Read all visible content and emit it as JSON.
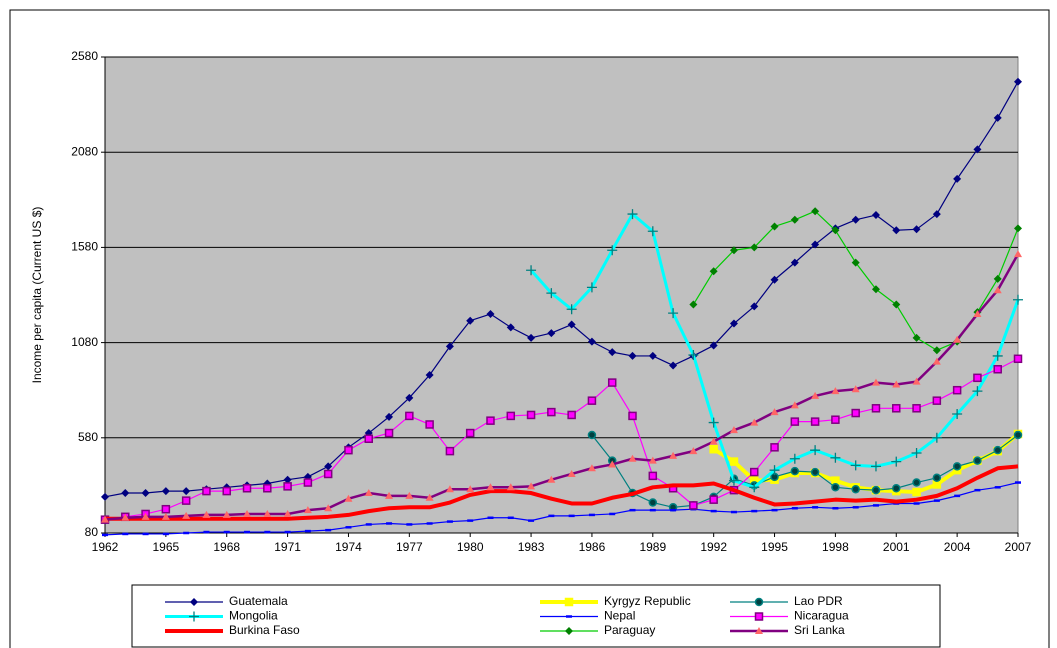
{
  "chart_data": {
    "type": "line",
    "y_label": "Income per capita (Current US $)",
    "x": [
      1962,
      1963,
      1964,
      1965,
      1966,
      1967,
      1968,
      1969,
      1970,
      1971,
      1972,
      1973,
      1974,
      1975,
      1976,
      1977,
      1978,
      1979,
      1980,
      1981,
      1982,
      1983,
      1984,
      1985,
      1986,
      1987,
      1988,
      1989,
      1990,
      1991,
      1992,
      1993,
      1994,
      1995,
      1996,
      1997,
      1998,
      1999,
      2000,
      2001,
      2002,
      2003,
      2004,
      2005,
      2006,
      2007
    ],
    "xlim": [
      1962,
      2007
    ],
    "xticks": [
      1962,
      1965,
      1968,
      1971,
      1974,
      1977,
      1980,
      1983,
      1986,
      1989,
      1992,
      1995,
      1998,
      2001,
      2004,
      2007
    ],
    "ylim": [
      80,
      2580
    ],
    "yticks": [
      80,
      580,
      1080,
      1580,
      2080,
      2580
    ],
    "grid": true,
    "background": "#c0c0c0",
    "legend": "bottom",
    "series": [
      {
        "name": "Guatemala",
        "color": "#000080",
        "marker": "diamond",
        "line_width": 1.2,
        "values": [
          270,
          290,
          290,
          300,
          300,
          310,
          320,
          330,
          340,
          360,
          375,
          430,
          530,
          605,
          690,
          790,
          910,
          1060,
          1195,
          1230,
          1160,
          1105,
          1130,
          1175,
          1085,
          1030,
          1010,
          1010,
          960,
          1010,
          1065,
          1180,
          1270,
          1410,
          1500,
          1595,
          1680,
          1725,
          1750,
          1670,
          1675,
          1755,
          1940,
          2095,
          2260,
          2450
        ]
      },
      {
        "name": "Kyrgyz Republic",
        "color": "#ffff00",
        "marker": "square",
        "line_width": 4,
        "values": [
          null,
          null,
          null,
          null,
          null,
          null,
          null,
          null,
          null,
          null,
          null,
          null,
          null,
          null,
          null,
          null,
          null,
          null,
          null,
          null,
          null,
          null,
          null,
          null,
          null,
          null,
          null,
          null,
          null,
          null,
          520,
          455,
          355,
          360,
          395,
          395,
          355,
          320,
          305,
          300,
          295,
          335,
          410,
          460,
          510,
          600
        ]
      },
      {
        "name": "Lao PDR",
        "color": "#008080",
        "marker": "circle",
        "marker_color": "#004040",
        "line_width": 1.2,
        "values": [
          null,
          null,
          null,
          null,
          null,
          null,
          null,
          null,
          null,
          null,
          null,
          null,
          null,
          null,
          null,
          null,
          null,
          null,
          null,
          null,
          null,
          null,
          null,
          null,
          595,
          460,
          290,
          240,
          215,
          225,
          270,
          365,
          330,
          375,
          405,
          400,
          320,
          310,
          305,
          315,
          345,
          370,
          430,
          460,
          515,
          595
        ]
      },
      {
        "name": "Mongolia",
        "color": "#00ffff",
        "marker": "plus",
        "marker_color": "#008080",
        "line_width": 3,
        "values": [
          null,
          null,
          null,
          null,
          null,
          null,
          null,
          null,
          null,
          null,
          null,
          null,
          null,
          null,
          null,
          null,
          null,
          null,
          null,
          null,
          null,
          1460,
          1340,
          1255,
          1370,
          1565,
          1755,
          1665,
          1235,
          1015,
          660,
          355,
          320,
          410,
          470,
          515,
          475,
          435,
          430,
          455,
          500,
          580,
          705,
          825,
          1010,
          1305
        ]
      },
      {
        "name": "Nepal",
        "color": "#0000ff",
        "marker": "dash",
        "line_width": 1.2,
        "values": [
          70,
          75,
          75,
          75,
          80,
          85,
          85,
          85,
          85,
          85,
          90,
          95,
          110,
          125,
          130,
          125,
          130,
          140,
          145,
          160,
          160,
          145,
          170,
          170,
          175,
          180,
          200,
          200,
          200,
          205,
          195,
          190,
          195,
          200,
          210,
          215,
          210,
          215,
          225,
          235,
          235,
          250,
          275,
          305,
          320,
          345
        ]
      },
      {
        "name": "Nicaragua",
        "color": "#ff00ff",
        "marker": "square",
        "marker_color": "#800080",
        "line_width": 1.2,
        "values": [
          150,
          165,
          180,
          205,
          250,
          300,
          300,
          315,
          315,
          325,
          345,
          390,
          515,
          575,
          605,
          695,
          650,
          510,
          605,
          670,
          695,
          700,
          715,
          700,
          775,
          870,
          695,
          380,
          315,
          225,
          255,
          305,
          400,
          530,
          665,
          665,
          675,
          710,
          735,
          735,
          735,
          775,
          830,
          895,
          940,
          995
        ]
      },
      {
        "name": "Burkina Faso",
        "color": "#ff0000",
        "marker": "none",
        "line_width": 4,
        "values": [
          155,
          155,
          155,
          155,
          155,
          155,
          155,
          155,
          155,
          155,
          160,
          165,
          175,
          195,
          210,
          215,
          215,
          240,
          280,
          300,
          300,
          290,
          260,
          235,
          235,
          265,
          285,
          320,
          330,
          330,
          340,
          305,
          265,
          230,
          235,
          245,
          255,
          250,
          255,
          245,
          255,
          275,
          315,
          370,
          420,
          430
        ]
      },
      {
        "name": "Paraguay",
        "color": "#00cc00",
        "marker": "diamond",
        "marker_color": "#008000",
        "line_width": 1.2,
        "values": [
          null,
          null,
          null,
          null,
          null,
          null,
          null,
          null,
          null,
          null,
          null,
          null,
          null,
          null,
          null,
          null,
          null,
          null,
          null,
          null,
          null,
          null,
          null,
          null,
          null,
          null,
          null,
          null,
          null,
          1280,
          1455,
          1565,
          1580,
          1690,
          1725,
          1770,
          1670,
          1500,
          1360,
          1280,
          1105,
          1040,
          1085,
          1240,
          1415,
          1680
        ]
      },
      {
        "name": "Sri Lanka",
        "color": "#800080",
        "marker": "triangle",
        "marker_color": "#ff6666",
        "line_width": 2.5,
        "values": [
          150,
          160,
          165,
          165,
          170,
          175,
          175,
          180,
          180,
          180,
          200,
          210,
          260,
          290,
          275,
          275,
          265,
          310,
          310,
          320,
          320,
          325,
          360,
          390,
          420,
          440,
          470,
          460,
          485,
          510,
          560,
          620,
          660,
          715,
          750,
          800,
          825,
          835,
          870,
          860,
          875,
          980,
          1095,
          1230,
          1355,
          1545
        ]
      }
    ]
  }
}
